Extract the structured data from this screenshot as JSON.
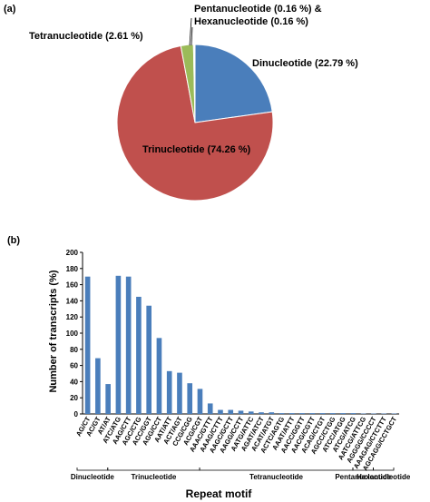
{
  "chart_data": [
    {
      "type": "pie",
      "panel_label": "(a)",
      "slices": [
        {
          "label": "Dinucleotide  (22.79 %)",
          "value": 22.79,
          "color": "#4a7ebb"
        },
        {
          "label": "Trinucleotide (74.26 %)",
          "value": 74.26,
          "color": "#c0504d"
        },
        {
          "label": "Tetranucleotide  (2.61 %)",
          "value": 2.61,
          "color": "#9bbb59"
        },
        {
          "label": "Pentanucleotide",
          "value": 0.16,
          "color": "#8064a2"
        },
        {
          "label": "Hexanucleotide",
          "value": 0.16,
          "color": "#4bacc6"
        }
      ],
      "combined_label_line1": "Pentanucleotide  (0.16 %) &",
      "combined_label_line2": "Hexanucleotide  (0.16 %)"
    },
    {
      "type": "bar",
      "panel_label": "(b)",
      "xlabel": "Repeat motif",
      "ylabel": "Number of transcripts (%)",
      "ylim": [
        0,
        200
      ],
      "yticks": [
        "0",
        "20",
        "40",
        "60",
        "80",
        "100",
        "120",
        "140",
        "160",
        "180",
        "200"
      ],
      "color": "#4a7ebb",
      "categories": [
        "AG/CT",
        "AC/GT",
        "AT/AT",
        "ATC/ATG",
        "AAG/CTT",
        "AGC/CTG",
        "ACC/GGT",
        "AGG/CCT",
        "AAT/ATT",
        "ACT/AGT",
        "CCG/CGG",
        "ACG/CGT",
        "AAAC/GTTT",
        "AAAG/CTTT",
        "AAGC/GCTT",
        "AAGG/CCTT",
        "AATG/ATTC",
        "AGAT/ATCT",
        "ACAT/ATGT",
        "ACTC/AGTG",
        "AAAT/ATTT",
        "AACC/GGTT",
        "AACG/CGTT",
        "ACAG/CTGT",
        "AGCC/CTGG",
        "ATCC/ATGG",
        "ATCG/ATCG",
        "AATCG/ATTCG",
        "AGGGG/CCCCT",
        "AAAGAG/CTCTTT",
        "AGCAGG/CCTGCT"
      ],
      "values": [
        170,
        69,
        37,
        171,
        170,
        145,
        134,
        94,
        53,
        51,
        38,
        31,
        13,
        5,
        5,
        4,
        3,
        2,
        2,
        1,
        1,
        1,
        1,
        1,
        1,
        1,
        1,
        0.5,
        0.5,
        0.5,
        0.5
      ],
      "groups": [
        {
          "label": "Dinucleotide",
          "start": 0,
          "end": 2
        },
        {
          "label": "Trinucleotide",
          "start": 3,
          "end": 11
        },
        {
          "label": "Tetranucleotide",
          "start": 12,
          "end": 26
        },
        {
          "label": "Pentanucleotide",
          "start": 27,
          "end": 28
        },
        {
          "label": "Hexanucleotide",
          "start": 29,
          "end": 30
        }
      ]
    }
  ]
}
